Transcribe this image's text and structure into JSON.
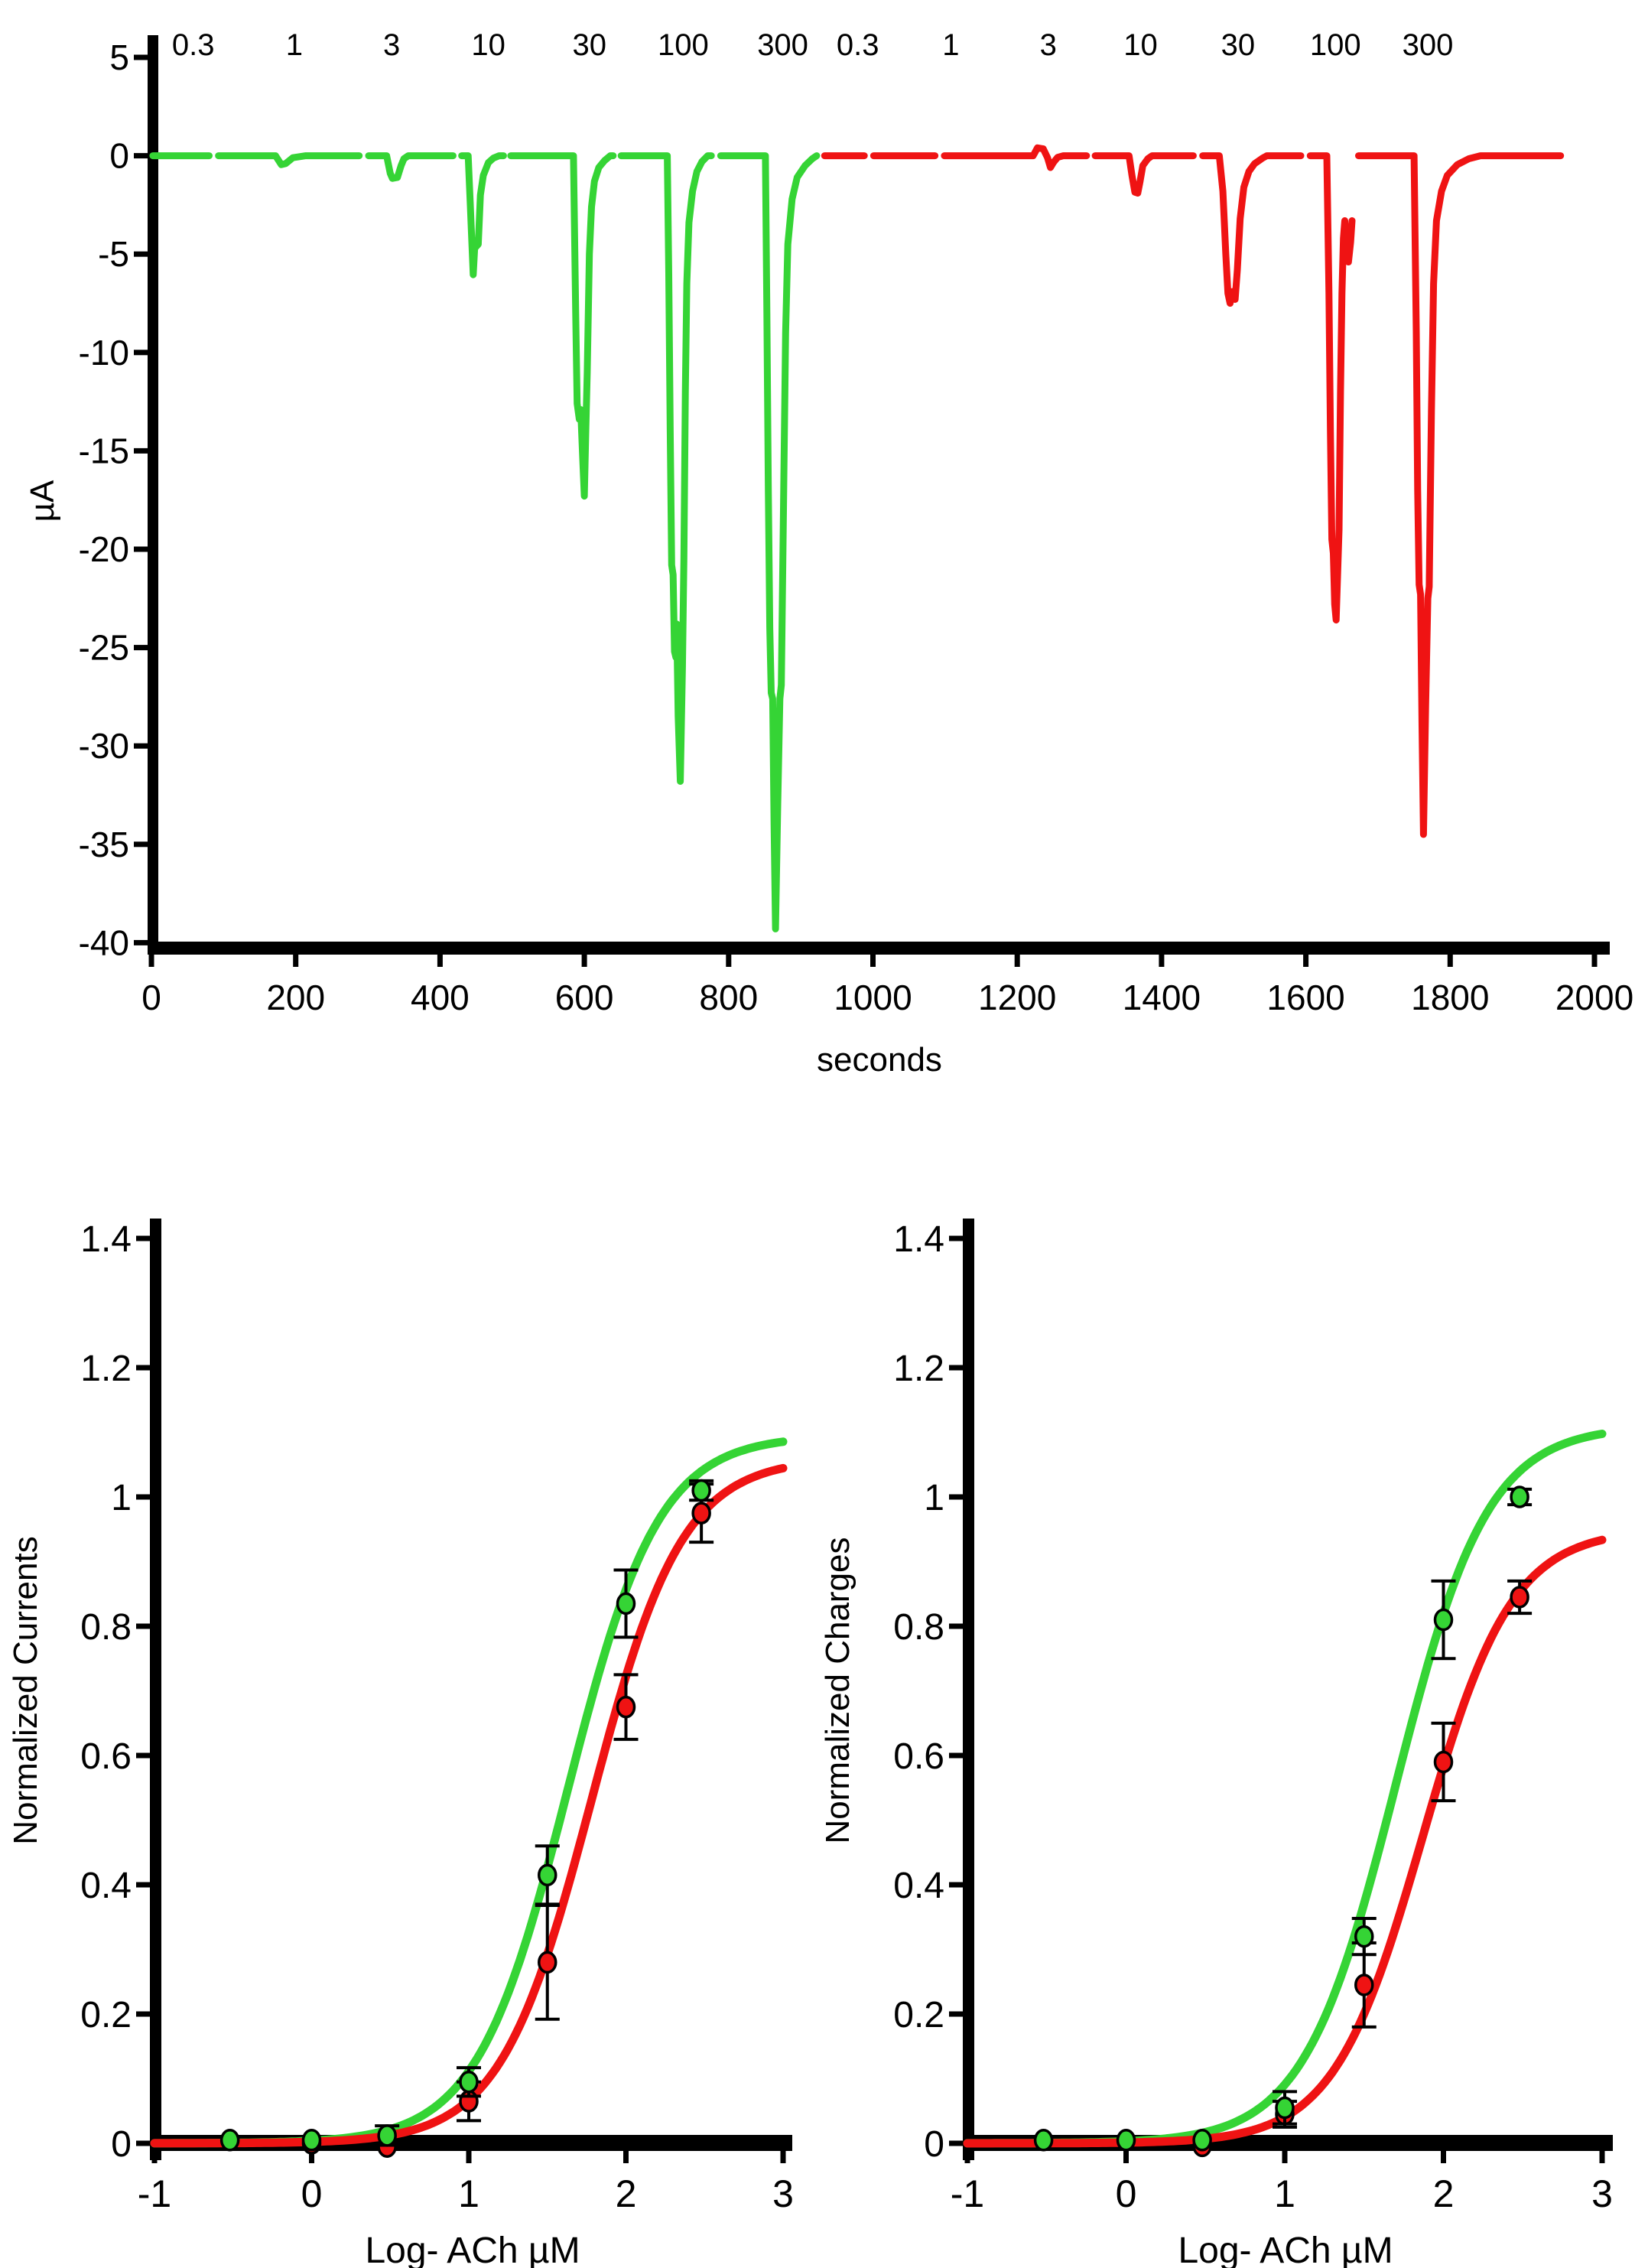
{
  "colors": {
    "green": "#35D435",
    "red": "#EF1313",
    "axis": "#000000"
  },
  "chart_data": [
    {
      "id": "current-traces",
      "type": "line",
      "title": "",
      "xlabel": "seconds",
      "ylabel": "µA",
      "xlim": [
        0,
        2000
      ],
      "ylim": [
        -40,
        5
      ],
      "x_ticks": [
        0,
        200,
        400,
        600,
        800,
        1000,
        1200,
        1400,
        1600,
        1800,
        2000
      ],
      "y_ticks": [
        5,
        0,
        -5,
        -10,
        -15,
        -20,
        -25,
        -30,
        -35,
        -40
      ],
      "grid": false,
      "concentration_labels": {
        "green": [
          {
            "text": "0.3",
            "t": 58
          },
          {
            "text": "1",
            "t": 198
          },
          {
            "text": "3",
            "t": 333
          },
          {
            "text": "10",
            "t": 467
          },
          {
            "text": "30",
            "t": 607
          },
          {
            "text": "100",
            "t": 737
          },
          {
            "text": "300",
            "t": 875
          }
        ],
        "red": [
          {
            "text": "0.3",
            "t": 979
          },
          {
            "text": "1",
            "t": 1108
          },
          {
            "text": "3",
            "t": 1243
          },
          {
            "text": "10",
            "t": 1371
          },
          {
            "text": "30",
            "t": 1506
          },
          {
            "text": "100",
            "t": 1641
          },
          {
            "text": "300",
            "t": 1769
          }
        ]
      },
      "series": [
        {
          "name": "green-trace",
          "color": "green",
          "segments": [
            [
              [
                2,
                0
              ],
              [
                80,
                0
              ]
            ],
            [
              [
                93,
                0
              ],
              [
                172,
                0
              ],
              [
                180,
                -0.45
              ],
              [
                186,
                -0.4
              ],
              [
                196,
                -0.1
              ],
              [
                214,
                0
              ],
              [
                288,
                0
              ]
            ],
            [
              [
                301,
                0
              ],
              [
                326,
                0
              ],
              [
                331,
                -0.9
              ],
              [
                334,
                -1.15
              ],
              [
                341,
                -1.1
              ],
              [
                346,
                -0.5
              ],
              [
                350,
                -0.15
              ],
              [
                356,
                0
              ],
              [
                418,
                0
              ]
            ],
            [
              [
                430,
                0
              ],
              [
                439,
                0
              ],
              [
                442,
                -2.5
              ],
              [
                444,
                -4.3
              ],
              [
                446,
                -6.05
              ],
              [
                448,
                -4.7
              ],
              [
                453,
                -4.5
              ],
              [
                456,
                -2.0
              ],
              [
                460,
                -1.0
              ],
              [
                467,
                -0.35
              ],
              [
                474,
                -0.12
              ],
              [
                482,
                0
              ],
              [
                488,
                0
              ]
            ],
            [
              [
                498,
                0
              ],
              [
                585,
                0
              ],
              [
                588,
                -8
              ],
              [
                590,
                -12.6
              ],
              [
                593,
                -13.4
              ],
              [
                595,
                -12.9
              ],
              [
                598,
                -15.6
              ],
              [
                600,
                -17.3
              ],
              [
                602,
                -14
              ],
              [
                604,
                -11
              ],
              [
                607,
                -5
              ],
              [
                610,
                -2.6
              ],
              [
                614,
                -1.3
              ],
              [
                620,
                -0.6
              ],
              [
                628,
                -0.25
              ],
              [
                636,
                0
              ],
              [
                640,
                0
              ]
            ],
            [
              [
                651,
                0
              ],
              [
                715,
                0
              ],
              [
                717,
                -6
              ],
              [
                719,
                -14
              ],
              [
                721,
                -20.8
              ],
              [
                723,
                -21.3
              ],
              [
                725,
                -25.2
              ],
              [
                727,
                -25.5
              ],
              [
                728,
                -23.8
              ],
              [
                730,
                -28.5
              ],
              [
                733,
                -31.8
              ],
              [
                736,
                -26
              ],
              [
                738,
                -20.5
              ],
              [
                740,
                -12
              ],
              [
                742,
                -6.5
              ],
              [
                745,
                -3.4
              ],
              [
                750,
                -1.8
              ],
              [
                756,
                -0.8
              ],
              [
                763,
                -0.3
              ],
              [
                771,
                0
              ],
              [
                776,
                0
              ]
            ],
            [
              [
                789,
                0
              ],
              [
                851,
                0
              ],
              [
                853,
                -8
              ],
              [
                855,
                -17
              ],
              [
                857,
                -24
              ],
              [
                859,
                -27.3
              ],
              [
                861,
                -27.6
              ],
              [
                863,
                -34
              ],
              [
                865,
                -39.3
              ],
              [
                868,
                -33
              ],
              [
                871,
                -27.6
              ],
              [
                873,
                -26.9
              ],
              [
                876,
                -18
              ],
              [
                879,
                -9
              ],
              [
                882,
                -4.5
              ],
              [
                888,
                -2.2
              ],
              [
                895,
                -1.1
              ],
              [
                906,
                -0.5
              ],
              [
                916,
                -0.15
              ],
              [
                922,
                0
              ]
            ]
          ]
        },
        {
          "name": "red-trace",
          "color": "red",
          "segments": [
            [
              [
                933,
                0
              ],
              [
                988,
                0
              ]
            ],
            [
              [
                1001,
                0
              ],
              [
                1086,
                0
              ]
            ],
            [
              [
                1099,
                0
              ],
              [
                1222,
                0
              ],
              [
                1228,
                0.4
              ],
              [
                1236,
                0.35
              ],
              [
                1242,
                -0.1
              ],
              [
                1246,
                -0.6
              ],
              [
                1250,
                -0.35
              ],
              [
                1256,
                -0.08
              ],
              [
                1264,
                0
              ],
              [
                1296,
                0
              ]
            ],
            [
              [
                1308,
                0
              ],
              [
                1355,
                0
              ],
              [
                1359,
                -1.0
              ],
              [
                1363,
                -1.85
              ],
              [
                1367,
                -1.9
              ],
              [
                1370,
                -1.35
              ],
              [
                1374,
                -0.5
              ],
              [
                1381,
                -0.15
              ],
              [
                1387,
                0
              ],
              [
                1444,
                0
              ]
            ],
            [
              [
                1457,
                0
              ],
              [
                1480,
                0
              ],
              [
                1485,
                -1.8
              ],
              [
                1489,
                -5
              ],
              [
                1492,
                -7
              ],
              [
                1495,
                -7.5
              ],
              [
                1498,
                -6.9
              ],
              [
                1502,
                -7.3
              ],
              [
                1505,
                -5.8
              ],
              [
                1509,
                -3.2
              ],
              [
                1514,
                -1.6
              ],
              [
                1521,
                -0.8
              ],
              [
                1529,
                -0.4
              ],
              [
                1540,
                -0.12
              ],
              [
                1546,
                0
              ],
              [
                1593,
                0
              ]
            ],
            [
              [
                1606,
                0
              ],
              [
                1629,
                0
              ],
              [
                1632,
                -7
              ],
              [
                1634,
                -14
              ],
              [
                1636,
                -19.5
              ],
              [
                1638,
                -20.2
              ],
              [
                1640,
                -22.8
              ],
              [
                1642,
                -23.6
              ],
              [
                1646,
                -19
              ],
              [
                1648,
                -12
              ],
              [
                1650,
                -7
              ],
              [
                1652,
                -4.2
              ],
              [
                1654,
                -3.3
              ],
              [
                1656,
                -4.8
              ],
              [
                1659,
                -5.4
              ],
              [
                1662,
                -4.4
              ],
              [
                1664,
                -3.3
              ]
            ],
            [
              [
                1673,
                0
              ],
              [
                1750,
                0
              ],
              [
                1753,
                -9
              ],
              [
                1755,
                -17
              ],
              [
                1757,
                -21.8
              ],
              [
                1759,
                -22.3
              ],
              [
                1761,
                -29
              ],
              [
                1763,
                -34.5
              ],
              [
                1766,
                -28
              ],
              [
                1769,
                -22.5
              ],
              [
                1771,
                -21.9
              ],
              [
                1774,
                -13
              ],
              [
                1777,
                -6.5
              ],
              [
                1781,
                -3.3
              ],
              [
                1788,
                -1.8
              ],
              [
                1796,
                -1.0
              ],
              [
                1810,
                -0.45
              ],
              [
                1826,
                -0.15
              ],
              [
                1842,
                0
              ],
              [
                1953,
                0
              ]
            ]
          ]
        }
      ]
    },
    {
      "id": "normalized-currents",
      "type": "scatter",
      "xlabel": "Log-  ACh µM",
      "ylabel": "Normalized Currents",
      "xlim": [
        -1,
        3
      ],
      "ylim": [
        0,
        1.4
      ],
      "x_ticks": [
        -1,
        0,
        1,
        2,
        3
      ],
      "y_ticks": [
        0,
        0.2,
        0.4,
        0.6,
        0.8,
        1,
        1.2,
        1.4
      ],
      "grid": false,
      "series": [
        {
          "name": "green-currents",
          "color": "green",
          "fit": {
            "top": 1.095,
            "logec50": 1.63,
            "hill": 1.5
          },
          "points": [
            {
              "x": -0.52,
              "y": 0.005,
              "err": 0
            },
            {
              "x": 0,
              "y": 0.005,
              "err": 0
            },
            {
              "x": 0.48,
              "y": 0.012,
              "err": 0.015
            },
            {
              "x": 1,
              "y": 0.095,
              "err": 0.022
            },
            {
              "x": 1.5,
              "y": 0.415,
              "err": 0.045
            },
            {
              "x": 2,
              "y": 0.835,
              "err": 0.052
            },
            {
              "x": 2.48,
              "y": 1.01,
              "err": 0.015
            }
          ]
        },
        {
          "name": "red-currents",
          "color": "red",
          "fit": {
            "top": 1.06,
            "logec50": 1.78,
            "hill": 1.5
          },
          "points": [
            {
              "x": 0,
              "y": 0,
              "err": 0
            },
            {
              "x": 0.48,
              "y": -0.005,
              "err": 0
            },
            {
              "x": 1,
              "y": 0.065,
              "err": 0.03
            },
            {
              "x": 1.5,
              "y": 0.28,
              "err": 0.088
            },
            {
              "x": 2,
              "y": 0.675,
              "err": 0.05
            },
            {
              "x": 2.48,
              "y": 0.975,
              "err": 0.045
            }
          ]
        }
      ]
    },
    {
      "id": "normalized-charges",
      "type": "scatter",
      "xlabel": "Log-  ACh µM",
      "ylabel": "Normalized Charges",
      "xlim": [
        -1,
        3
      ],
      "ylim": [
        0,
        1.4
      ],
      "x_ticks": [
        -1,
        0,
        1,
        2,
        3
      ],
      "y_ticks": [
        0,
        0.2,
        0.4,
        0.6,
        0.8,
        1,
        1.2,
        1.4
      ],
      "grid": false,
      "series": [
        {
          "name": "green-charges",
          "color": "green",
          "fit": {
            "top": 1.11,
            "logec50": 1.7,
            "hill": 1.5
          },
          "points": [
            {
              "x": -0.52,
              "y": 0.005,
              "err": 0
            },
            {
              "x": 0,
              "y": 0.005,
              "err": 0
            },
            {
              "x": 0.48,
              "y": 0.005,
              "err": 0
            },
            {
              "x": 1,
              "y": 0.055,
              "err": 0.025
            },
            {
              "x": 1.5,
              "y": 0.32,
              "err": 0.028
            },
            {
              "x": 2,
              "y": 0.81,
              "err": 0.06
            },
            {
              "x": 2.48,
              "y": 1.0,
              "err": 0.012
            }
          ]
        },
        {
          "name": "red-charges",
          "color": "red",
          "fit": {
            "top": 0.95,
            "logec50": 1.87,
            "hill": 1.55
          },
          "points": [
            {
              "x": 0.48,
              "y": -0.004,
              "err": 0
            },
            {
              "x": 1,
              "y": 0.045,
              "err": 0.02
            },
            {
              "x": 1.5,
              "y": 0.245,
              "err": 0.065
            },
            {
              "x": 2,
              "y": 0.59,
              "err": 0.06
            },
            {
              "x": 2.48,
              "y": 0.845,
              "err": 0.025
            }
          ]
        }
      ]
    }
  ]
}
